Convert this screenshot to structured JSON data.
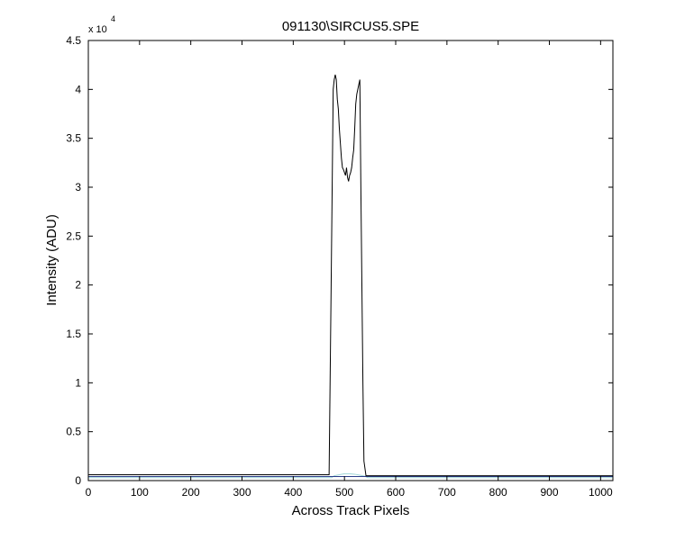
{
  "chart_data": {
    "type": "line",
    "title": "091130\\SIRCUS5.SPE",
    "xlabel": "Across Track Pixels",
    "ylabel": "Intensity (ADU)",
    "y_multiplier": "x 10",
    "y_exponent": "4",
    "xlim": [
      0,
      1024
    ],
    "ylim": [
      0,
      45000
    ],
    "grid": false,
    "x_ticks": [
      0,
      100,
      200,
      300,
      400,
      500,
      600,
      700,
      800,
      900,
      1000
    ],
    "x_tick_labels": [
      "0",
      "100",
      "200",
      "300",
      "400",
      "500",
      "600",
      "700",
      "800",
      "900",
      "1000"
    ],
    "y_ticks": [
      0,
      5000,
      10000,
      15000,
      20000,
      25000,
      30000,
      35000,
      40000,
      45000
    ],
    "y_tick_labels": [
      "0",
      "0.5",
      "1",
      "1.5",
      "2",
      "2.5",
      "3",
      "3.5",
      "4",
      "4.5"
    ],
    "series": [
      {
        "color": "#000000",
        "x": [
          0,
          470,
          474,
          478,
          480,
          482,
          484,
          486,
          488,
          490,
          492,
          494,
          496,
          498,
          500,
          502,
          504,
          506,
          508,
          510,
          512,
          514,
          516,
          518,
          520,
          522,
          524,
          526,
          528,
          530,
          532,
          534,
          536,
          538,
          542,
          1024
        ],
        "y": [
          600,
          600,
          20000,
          40000,
          41000,
          41500,
          41000,
          39000,
          38000,
          36000,
          34500,
          33000,
          32000,
          31800,
          31500,
          31200,
          32000,
          31000,
          30600,
          31200,
          31500,
          32000,
          33000,
          33800,
          36000,
          38500,
          39500,
          40000,
          40500,
          41000,
          30000,
          20000,
          10000,
          2000,
          500,
          500
        ]
      },
      {
        "color": "#9fd6d6",
        "x": [
          0,
          475,
          480,
          490,
          500,
          510,
          520,
          530,
          540,
          545,
          1024
        ],
        "y": [
          300,
          300,
          500,
          600,
          700,
          700,
          650,
          550,
          450,
          300,
          300
        ]
      },
      {
        "color": "#2c3e8a",
        "x": [
          0,
          1024
        ],
        "y": [
          420,
          420
        ]
      }
    ]
  }
}
